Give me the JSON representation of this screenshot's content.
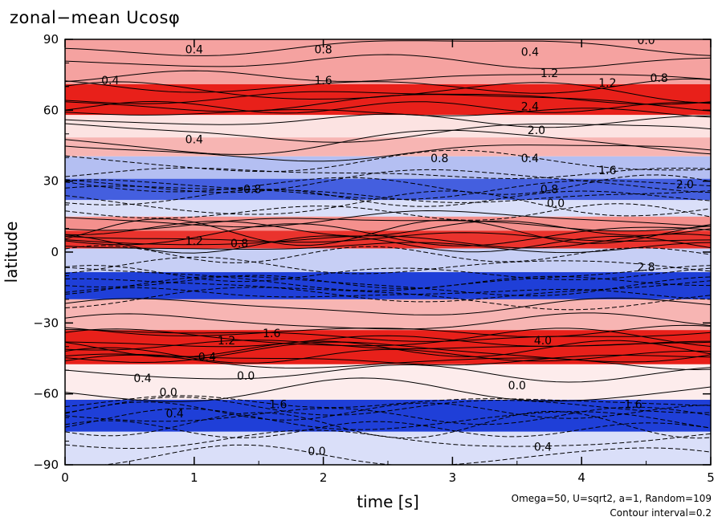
{
  "title": "zonal−mean Ucosφ",
  "footnote_params": "Omega=50, U=sqrt2, a=1, Random=109",
  "footnote_interval": "Contour interval=0.2",
  "colors": {
    "positive": "#e8201a",
    "negative": "#1f3fd8",
    "contour": "#000000"
  },
  "chart_data": {
    "type": "heatmap",
    "xlabel": "time [s]",
    "ylabel": "latitude",
    "xlim": [
      0,
      5
    ],
    "ylim": [
      -90,
      90
    ],
    "xticks": [
      0,
      1,
      2,
      3,
      4,
      5
    ],
    "yticks": [
      -90,
      -60,
      -30,
      0,
      30,
      60,
      90
    ],
    "xtick_labels": [
      "0",
      "1",
      "2",
      "3",
      "4",
      "5"
    ],
    "ytick_labels": [
      "−90",
      "−60",
      "−30",
      "0",
      "30",
      "60",
      "90"
    ],
    "contour_interval": 0.2,
    "bands": [
      {
        "lat": 78,
        "value": 1.0
      },
      {
        "lat": 64,
        "value": 2.4
      },
      {
        "lat": 52,
        "value": 0.3
      },
      {
        "lat": 45,
        "value": 0.8
      },
      {
        "lat": 36,
        "value": -0.8
      },
      {
        "lat": 26,
        "value": -2.0
      },
      {
        "lat": 18,
        "value": -0.4
      },
      {
        "lat": 12,
        "value": 1.2
      },
      {
        "lat": 6,
        "value": 2.2
      },
      {
        "lat": -3,
        "value": -0.6
      },
      {
        "lat": -14,
        "value": -2.6
      },
      {
        "lat": -26,
        "value": 0.8
      },
      {
        "lat": -40,
        "value": 4.0
      },
      {
        "lat": -55,
        "value": 0.2
      },
      {
        "lat": -70,
        "value": -2.8
      },
      {
        "lat": -82,
        "value": -0.4
      }
    ],
    "contour_labels": [
      {
        "t": 1.0,
        "lat": 84,
        "text": "0.4"
      },
      {
        "t": 2.0,
        "lat": 84,
        "text": "0.8"
      },
      {
        "t": 3.6,
        "lat": 83,
        "text": "0.4"
      },
      {
        "t": 4.5,
        "lat": 88,
        "text": "0.0"
      },
      {
        "t": 0.35,
        "lat": 71,
        "text": "0.4"
      },
      {
        "t": 2.0,
        "lat": 71,
        "text": "1.6"
      },
      {
        "t": 3.75,
        "lat": 74,
        "text": "1.2"
      },
      {
        "t": 4.2,
        "lat": 70,
        "text": "1.2"
      },
      {
        "t": 4.6,
        "lat": 72,
        "text": "0.8"
      },
      {
        "t": 3.6,
        "lat": 60,
        "text": "2.4"
      },
      {
        "t": 3.65,
        "lat": 50,
        "text": "2.0"
      },
      {
        "t": 1.0,
        "lat": 46,
        "text": "0.4"
      },
      {
        "t": 2.9,
        "lat": 38,
        "text": "0.8"
      },
      {
        "t": 3.6,
        "lat": 38,
        "text": "0.4"
      },
      {
        "t": 4.2,
        "lat": 33,
        "text": "1.6"
      },
      {
        "t": 4.8,
        "lat": 27,
        "text": "2.0"
      },
      {
        "t": 1.45,
        "lat": 25,
        "text": "0.8"
      },
      {
        "t": 3.75,
        "lat": 25,
        "text": "0.8"
      },
      {
        "t": 3.8,
        "lat": 19,
        "text": "0.0"
      },
      {
        "t": 1.0,
        "lat": 3,
        "text": "1.2"
      },
      {
        "t": 1.35,
        "lat": 2,
        "text": "0.8"
      },
      {
        "t": 4.5,
        "lat": -8,
        "text": "2.8"
      },
      {
        "t": 1.25,
        "lat": -39,
        "text": "1.2"
      },
      {
        "t": 1.6,
        "lat": -36,
        "text": "1.6"
      },
      {
        "t": 3.7,
        "lat": -39,
        "text": "4.0"
      },
      {
        "t": 1.1,
        "lat": -46,
        "text": "0.4"
      },
      {
        "t": 0.6,
        "lat": -55,
        "text": "0.4"
      },
      {
        "t": 0.8,
        "lat": -61,
        "text": "0.0"
      },
      {
        "t": 1.4,
        "lat": -54,
        "text": "0.0"
      },
      {
        "t": 3.5,
        "lat": -58,
        "text": "0.0"
      },
      {
        "t": 1.65,
        "lat": -66,
        "text": "1.6"
      },
      {
        "t": 4.4,
        "lat": -66,
        "text": "1.6"
      },
      {
        "t": 0.85,
        "lat": -70,
        "text": "0.4"
      },
      {
        "t": 1.95,
        "lat": -86,
        "text": "0.0"
      },
      {
        "t": 3.7,
        "lat": -84,
        "text": "0.4"
      }
    ]
  }
}
